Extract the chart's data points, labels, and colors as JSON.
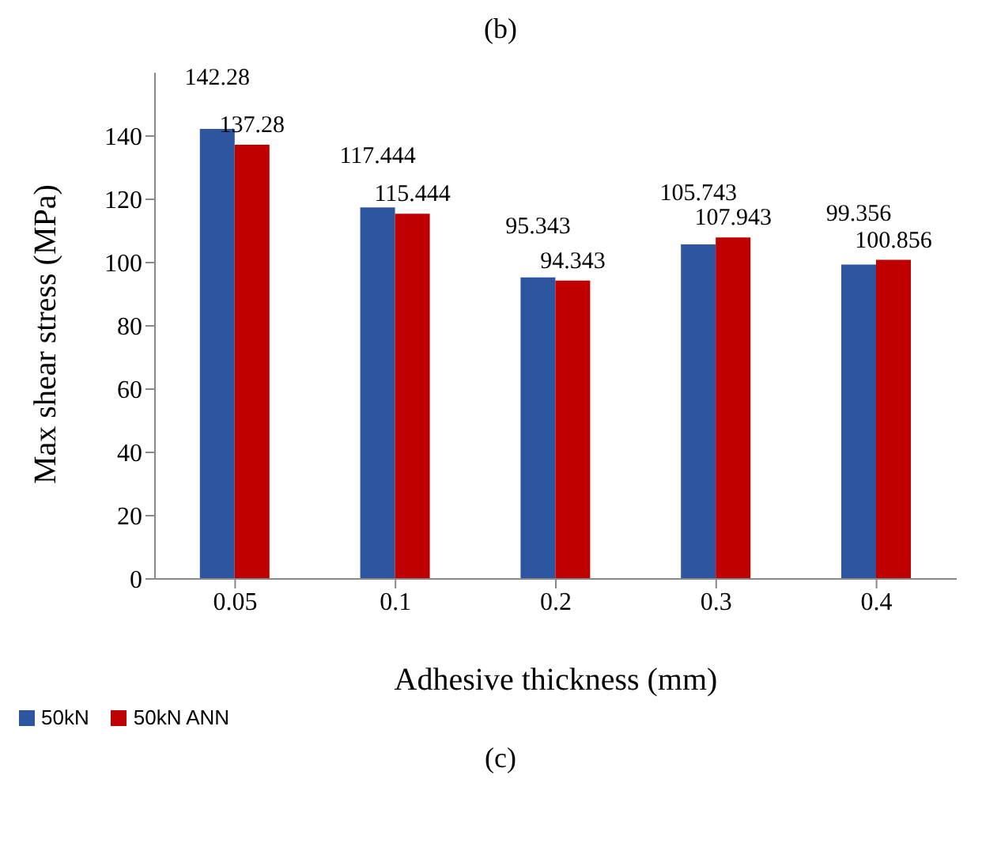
{
  "chart_data": {
    "type": "bar",
    "title": "(b)",
    "xlabel": "Adhesive thickness (mm)",
    "ylabel": "Max shear stress (MPa)",
    "categories": [
      "0.05",
      "0.1",
      "0.2",
      "0.3",
      "0.4"
    ],
    "series": [
      {
        "name": "50kN",
        "color": "#2e55a0",
        "values": [
          142.28,
          117.444,
          95.343,
          105.743,
          99.356
        ]
      },
      {
        "name": "50kN ANN",
        "color": "#c00000",
        "values": [
          137.28,
          115.444,
          94.343,
          107.943,
          100.856
        ]
      }
    ],
    "ylim": [
      0,
      160
    ],
    "yticks": [
      0,
      20,
      40,
      60,
      80,
      100,
      120,
      140
    ],
    "grid": false,
    "legend": "bottom left",
    "data_labels": true,
    "annotations": [
      "(c)"
    ]
  }
}
